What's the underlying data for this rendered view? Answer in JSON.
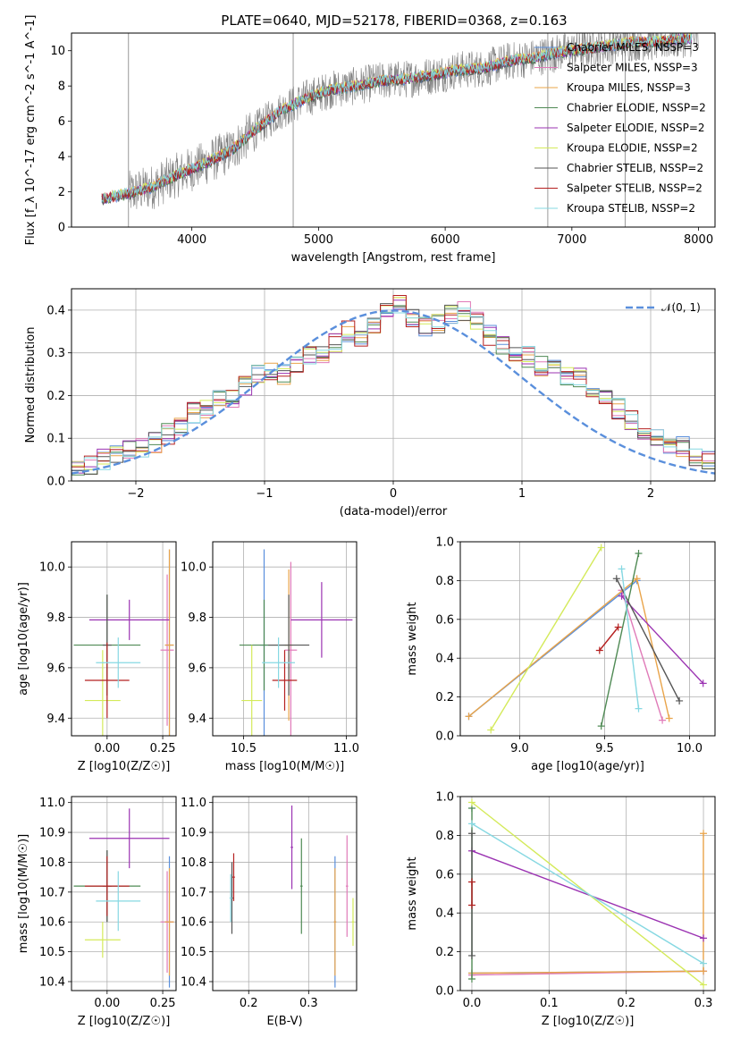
{
  "figure": {
    "title": "PLATE=0640, MJD=52178, FIBERID=0368, z=0.163"
  },
  "chart_data": [
    {
      "type": "line",
      "name": "spectrum",
      "xlabel": "wavelength [Angstrom, rest frame]",
      "ylabel": "Flux [f_λ 10^-17 erg cm^-2 s^-1 A^-1]",
      "xlim": [
        3050,
        8130
      ],
      "ylim": [
        0,
        11
      ],
      "xticks": [
        4000,
        5000,
        6000,
        7000,
        8000
      ],
      "yticks": [
        0,
        2,
        4,
        6,
        8,
        10
      ],
      "grid": false,
      "legend_position": "top-right",
      "legend": [
        {
          "label": "Chabrier MILES, N_SSP=3",
          "color": "#5a8fdc"
        },
        {
          "label": "Salpeter MILES, N_SSP=3",
          "color": "#e07ab8"
        },
        {
          "label": "Kroupa MILES, N_SSP=3",
          "color": "#e9a44a"
        },
        {
          "label": "Chabrier ELODIE, N_SSP=2",
          "color": "#4f8a54"
        },
        {
          "label": "Salpeter ELODIE, N_SSP=2",
          "color": "#9b33b2"
        },
        {
          "label": "Kroupa ELODIE, N_SSP=2",
          "color": "#d4ea5a"
        },
        {
          "label": "Chabrier STELIB, N_SSP=2",
          "color": "#555555"
        },
        {
          "label": "Salpeter STELIB, N_SSP=2",
          "color": "#b52020"
        },
        {
          "label": "Kroupa STELIB, N_SSP=2",
          "color": "#86d8e2"
        }
      ],
      "data_color": "#808080",
      "model_x": [
        3290,
        3500,
        3700,
        3900,
        4100,
        4300,
        4500,
        4700,
        4900,
        5100,
        5300,
        5500,
        5700,
        5900,
        6100,
        6300,
        6500,
        6700,
        6900,
        7100,
        7300,
        7500,
        7700,
        7900
      ],
      "model_y": [
        1.6,
        1.9,
        2.3,
        3.0,
        3.6,
        4.3,
        5.5,
        6.6,
        7.3,
        7.8,
        8.0,
        8.3,
        8.4,
        8.6,
        8.9,
        9.0,
        9.4,
        9.6,
        9.9,
        10.1,
        10.3,
        10.5,
        10.5,
        10.7
      ]
    },
    {
      "type": "line",
      "name": "residual-histogram",
      "xlabel": "(data-model)/error",
      "ylabel": "Normed distribution",
      "xlim": [
        -2.5,
        2.5
      ],
      "ylim": [
        0,
        0.45
      ],
      "xticks": [
        -2,
        -1,
        0,
        1,
        2
      ],
      "yticks": [
        0.0,
        0.1,
        0.2,
        0.3,
        0.4
      ],
      "grid": true,
      "legend_position": "top-right",
      "legend": [
        {
          "label": "𝒩(0, 1)",
          "color": "#5a8fdc",
          "style": "dashed"
        }
      ],
      "hist_edges_start": -2.5,
      "hist_bin_width": 0.1,
      "hist_reference": [
        0.03,
        0.04,
        0.05,
        0.06,
        0.07,
        0.08,
        0.09,
        0.11,
        0.13,
        0.16,
        0.17,
        0.2,
        0.19,
        0.22,
        0.25,
        0.26,
        0.25,
        0.27,
        0.29,
        0.3,
        0.32,
        0.35,
        0.34,
        0.36,
        0.4,
        0.41,
        0.38,
        0.36,
        0.37,
        0.39,
        0.4,
        0.38,
        0.34,
        0.32,
        0.3,
        0.29,
        0.27,
        0.26,
        0.25,
        0.24,
        0.21,
        0.2,
        0.17,
        0.14,
        0.12,
        0.1,
        0.09,
        0.08,
        0.06,
        0.05
      ]
    },
    {
      "type": "scatter",
      "name": "Z-vs-age",
      "xlabel": "Z [log10(Z/Z☉)]",
      "ylabel": "age [log10(age/yr)]",
      "xlim": [
        -0.16,
        0.31
      ],
      "ylim": [
        9.33,
        10.1
      ],
      "xticks": [
        0.0,
        0.25
      ],
      "yticks": [
        9.4,
        9.6,
        9.8,
        10.0
      ],
      "grid": true
    },
    {
      "type": "scatter",
      "name": "mass-vs-age",
      "xlabel": "mass [log10(M/M☉)]",
      "ylabel": "",
      "xlim": [
        10.35,
        11.05
      ],
      "ylim": [
        9.33,
        10.1
      ],
      "xticks": [
        10.5,
        11.0
      ],
      "yticks": [
        9.4,
        9.6,
        9.8,
        10.0
      ],
      "grid": true
    },
    {
      "type": "line",
      "name": "age-vs-mass-weight",
      "xlabel": "age [log10(age/yr)]",
      "ylabel": "mass weight",
      "xlim": [
        8.65,
        10.15
      ],
      "ylim": [
        0,
        1
      ],
      "xticks": [
        9.0,
        9.5,
        10.0
      ],
      "yticks": [
        0.0,
        0.2,
        0.4,
        0.6,
        0.8,
        1.0
      ],
      "grid": true,
      "series": [
        {
          "color": "#5a8fdc",
          "x": [
            8.7,
            9.69
          ],
          "y": [
            0.1,
            0.8
          ]
        },
        {
          "color": "#e07ab8",
          "x": [
            9.6,
            9.84
          ],
          "y": [
            0.75,
            0.08
          ]
        },
        {
          "color": "#e9a44a",
          "x": [
            8.7,
            9.69,
            9.88
          ],
          "y": [
            0.1,
            0.81,
            0.09
          ]
        },
        {
          "color": "#4f8a54",
          "x": [
            9.48,
            9.7
          ],
          "y": [
            0.05,
            0.94
          ]
        },
        {
          "color": "#9b33b2",
          "x": [
            9.6,
            10.08
          ],
          "y": [
            0.72,
            0.27
          ]
        },
        {
          "color": "#d4ea5a",
          "x": [
            8.83,
            9.48
          ],
          "y": [
            0.03,
            0.97
          ]
        },
        {
          "color": "#555555",
          "x": [
            9.57,
            9.94
          ],
          "y": [
            0.81,
            0.18
          ]
        },
        {
          "color": "#b52020",
          "x": [
            9.47,
            9.58
          ],
          "y": [
            0.44,
            0.56
          ]
        },
        {
          "color": "#86d8e2",
          "x": [
            9.6,
            9.7
          ],
          "y": [
            0.86,
            0.14
          ]
        }
      ]
    },
    {
      "type": "scatter",
      "name": "Z-vs-mass",
      "xlabel": "Z [log10(Z/Z☉)]",
      "ylabel": "mass [log10(M/M☉)]",
      "xlim": [
        -0.16,
        0.31
      ],
      "ylim": [
        10.37,
        11.02
      ],
      "xticks": [
        0.0,
        0.25
      ],
      "yticks": [
        10.4,
        10.5,
        10.6,
        10.7,
        10.8,
        10.9,
        11.0
      ],
      "grid": true
    },
    {
      "type": "scatter",
      "name": "EBV-vs-mass",
      "xlabel": "E(B-V)",
      "ylabel": "",
      "xlim": [
        0.14,
        0.38
      ],
      "ylim": [
        10.37,
        11.02
      ],
      "xticks": [
        0.2,
        0.3
      ],
      "yticks": [
        10.4,
        10.5,
        10.6,
        10.7,
        10.8,
        10.9,
        11.0
      ],
      "grid": true
    },
    {
      "type": "line",
      "name": "Z-vs-mass-weight",
      "xlabel": "Z [log10(Z/Z☉)]",
      "ylabel": "mass weight",
      "xlim": [
        -0.015,
        0.315
      ],
      "ylim": [
        0,
        1
      ],
      "xticks": [
        0.0,
        0.1,
        0.2,
        0.3
      ],
      "yticks": [
        0.0,
        0.2,
        0.4,
        0.6,
        0.8,
        1.0
      ],
      "grid": true,
      "series": [
        {
          "color": "#5a8fdc",
          "x": [
            0.0,
            0.3
          ],
          "y": [
            0.09,
            0.1
          ]
        },
        {
          "color": "#e07ab8",
          "x": [
            0.0,
            0.3
          ],
          "y": [
            0.08,
            0.1
          ]
        },
        {
          "color": "#e9a44a",
          "x": [
            0.0,
            0.3,
            0.3
          ],
          "y": [
            0.09,
            0.1,
            0.81
          ]
        },
        {
          "color": "#4f8a54",
          "x": [
            0.0,
            0.0
          ],
          "y": [
            0.06,
            0.94
          ]
        },
        {
          "color": "#9b33b2",
          "x": [
            0.0,
            0.3
          ],
          "y": [
            0.72,
            0.27
          ]
        },
        {
          "color": "#d4ea5a",
          "x": [
            0.0,
            0.3
          ],
          "y": [
            0.97,
            0.03
          ]
        },
        {
          "color": "#555555",
          "x": [
            0.0,
            0.0
          ],
          "y": [
            0.18,
            0.81
          ]
        },
        {
          "color": "#b52020",
          "x": [
            0.0,
            0.0
          ],
          "y": [
            0.44,
            0.56
          ]
        },
        {
          "color": "#86d8e2",
          "x": [
            0.0,
            0.3
          ],
          "y": [
            0.86,
            0.14
          ]
        }
      ]
    }
  ]
}
